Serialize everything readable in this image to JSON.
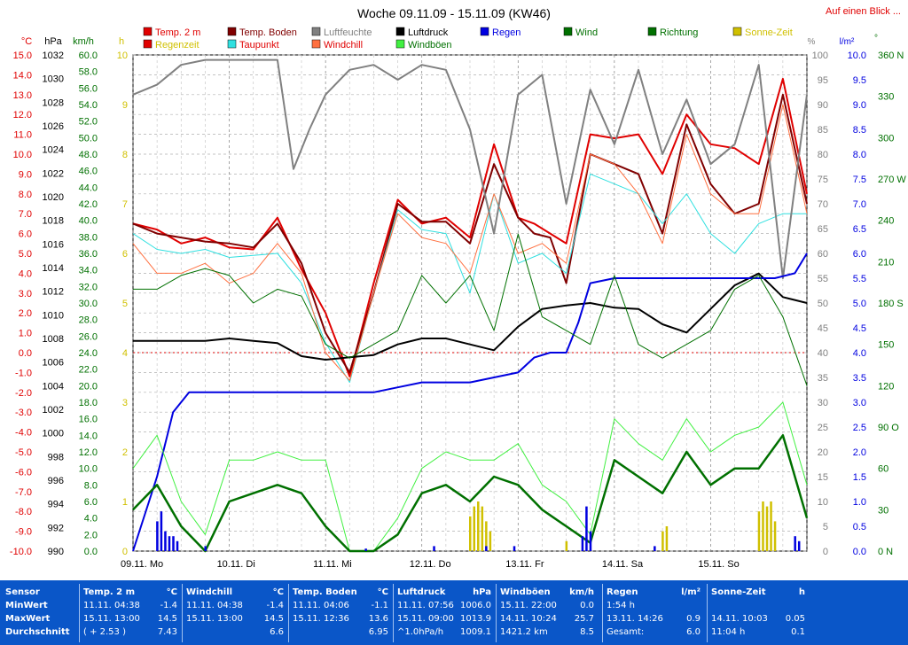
{
  "title": "Woche 09.11.09 - 15.11.09 (KW46)",
  "link": "Auf einen Blick ...",
  "colors": {
    "temp": "#e00000",
    "boden": "#800000",
    "feuchte": "#808080",
    "druck": "#000000",
    "regenzeit": "#e00000",
    "taupunkt": "#30e0e0",
    "windchill": "#ff7040",
    "windboeen": "#40f040",
    "regen": "#0000e0",
    "wind": "#007000",
    "richtung": "#007000",
    "sonne": "#d0c000",
    "footer": "#0a56c8"
  },
  "legend": [
    {
      "label": "Temp. 2 m",
      "color": "#e00000",
      "text": "#e00000"
    },
    {
      "label": "Temp. Boden",
      "color": "#800000",
      "text": "#800000"
    },
    {
      "label": "Luftfeuchte",
      "color": "#808080",
      "text": "#808080"
    },
    {
      "label": "Luftdruck",
      "color": "#000000",
      "text": "#000000"
    },
    {
      "label": "Regen",
      "color": "#0000e0",
      "text": "#0000e0"
    },
    {
      "label": "Wind",
      "color": "#007000",
      "text": "#007000"
    },
    {
      "label": "Richtung",
      "color": "#007000",
      "text": "#007000"
    },
    {
      "label": "Sonne-Zeit",
      "color": "#d0c000",
      "text": "#d0c000"
    },
    {
      "label": "Regenzeit",
      "color": "#e00000",
      "text": "#d0c000"
    },
    {
      "label": "Taupunkt",
      "color": "#30e0e0",
      "text": "#e00000"
    },
    {
      "label": "Windchill",
      "color": "#ff7040",
      "text": "#e00000"
    },
    {
      "label": "Windböen",
      "color": "#40f040",
      "text": "#007000"
    }
  ],
  "axes": {
    "temp": {
      "unit": "°C",
      "ticks": [
        "15.0",
        "14.0",
        "13.0",
        "12.0",
        "11.0",
        "10.0",
        "9.0",
        "8.0",
        "7.0",
        "6.0",
        "5.0",
        "4.0",
        "3.0",
        "2.0",
        "1.0",
        "0.0",
        "-1.0",
        "-2.0",
        "-3.0",
        "-4.0",
        "-5.0",
        "-6.0",
        "-7.0",
        "-8.0",
        "-9.0",
        "-10.0"
      ]
    },
    "press": {
      "unit": "hPa",
      "ticks": [
        "1032",
        "1030",
        "1028",
        "1026",
        "1024",
        "1022",
        "1020",
        "1018",
        "1016",
        "1014",
        "1012",
        "1010",
        "1008",
        "1006",
        "1004",
        "1002",
        "1000",
        "998",
        "996",
        "994",
        "992",
        "990"
      ]
    },
    "wind": {
      "unit": "km/h",
      "ticks": [
        "60.0",
        "58.0",
        "56.0",
        "54.0",
        "52.0",
        "50.0",
        "48.0",
        "46.0",
        "44.0",
        "42.0",
        "40.0",
        "38.0",
        "36.0",
        "34.0",
        "32.0",
        "30.0",
        "28.0",
        "26.0",
        "24.0",
        "22.0",
        "20.0",
        "18.0",
        "16.0",
        "14.0",
        "12.0",
        "10.0",
        "8.0",
        "6.0",
        "4.0",
        "2.0",
        "0.0"
      ]
    },
    "hours": {
      "unit": "h",
      "ticks": [
        "10",
        "9",
        "8",
        "7",
        "6",
        "5",
        "4",
        "3",
        "2",
        "1",
        "0"
      ]
    },
    "hum": {
      "unit": "%",
      "ticks": [
        "100",
        "95",
        "90",
        "85",
        "80",
        "75",
        "70",
        "65",
        "60",
        "55",
        "50",
        "45",
        "40",
        "35",
        "30",
        "25",
        "20",
        "15",
        "10",
        "5",
        "0"
      ]
    },
    "rain": {
      "unit": "l/m²",
      "ticks": [
        "10.0",
        "9.5",
        "9.0",
        "8.5",
        "8.0",
        "7.5",
        "7.0",
        "6.5",
        "6.0",
        "5.5",
        "5.0",
        "4.5",
        "4.0",
        "3.5",
        "3.0",
        "2.5",
        "2.0",
        "1.5",
        "1.0",
        "0.5",
        "0.0"
      ]
    },
    "dir": {
      "unit": "°",
      "ticks": [
        "360 N",
        "330",
        "300",
        "270 W",
        "240",
        "210",
        "180 S",
        "150",
        "120",
        "90 O",
        "60",
        "30",
        "0 N"
      ]
    }
  },
  "days": [
    "09.11. Mo",
    "10.11. Di",
    "11.11. Mi",
    "12.11. Do",
    "13.11. Fr",
    "14.11. Sa",
    "15.11. So"
  ],
  "chart_data": {
    "type": "line",
    "x_unit": "hours since 09.11. 00:00",
    "ylim_temp": [
      -10,
      15
    ],
    "ylim_press": [
      990,
      1032
    ],
    "ylim_wind": [
      0,
      60
    ],
    "ylim_hum": [
      0,
      100
    ],
    "ylim_rain": [
      0,
      10
    ],
    "ylim_dir": [
      0,
      360
    ],
    "series": [
      {
        "name": "Temp. 2 m",
        "axis": "temp",
        "x": [
          0,
          6,
          12,
          18,
          24,
          30,
          36,
          42,
          48,
          54,
          60,
          66,
          72,
          78,
          84,
          90,
          96,
          100,
          104,
          108,
          114,
          120,
          126,
          132,
          138,
          144,
          150,
          156,
          162,
          168
        ],
        "values": [
          6.5,
          6.2,
          5.5,
          5.8,
          5.3,
          5.2,
          6.8,
          4.2,
          2.0,
          -1.2,
          3.5,
          7.7,
          6.5,
          6.8,
          5.8,
          10.5,
          6.8,
          6.5,
          6.0,
          5.5,
          11.0,
          10.8,
          11.0,
          9.0,
          12.0,
          10.5,
          10.3,
          9.5,
          13.8,
          8.0
        ]
      },
      {
        "name": "Temp. Boden",
        "axis": "temp",
        "x": [
          0,
          6,
          12,
          18,
          24,
          30,
          36,
          42,
          48,
          54,
          60,
          66,
          72,
          78,
          84,
          90,
          96,
          100,
          104,
          108,
          114,
          120,
          126,
          132,
          138,
          144,
          150,
          156,
          162,
          168
        ],
        "values": [
          6.5,
          6.0,
          5.8,
          5.6,
          5.5,
          5.3,
          6.5,
          4.5,
          1.0,
          -1.0,
          3.0,
          7.5,
          6.6,
          6.6,
          5.5,
          9.5,
          6.8,
          6.0,
          5.8,
          3.5,
          10.0,
          9.5,
          9.0,
          6.0,
          11.5,
          8.5,
          7.0,
          7.5,
          13.0,
          7.5
        ]
      },
      {
        "name": "Taupunkt",
        "axis": "temp",
        "x": [
          0,
          6,
          12,
          18,
          24,
          30,
          36,
          42,
          48,
          54,
          60,
          66,
          72,
          78,
          84,
          90,
          96,
          102,
          108,
          114,
          120,
          126,
          132,
          138,
          144,
          150,
          156,
          162,
          168
        ],
        "values": [
          6.0,
          5.2,
          5.0,
          5.2,
          4.8,
          4.9,
          5.0,
          3.5,
          0.5,
          -1.5,
          3.0,
          7.2,
          6.2,
          6.0,
          3.0,
          8.0,
          4.5,
          5.0,
          4.0,
          9.0,
          8.5,
          8.0,
          6.5,
          8.0,
          6.0,
          5.0,
          6.5,
          7.0,
          7.0
        ]
      },
      {
        "name": "Windchill",
        "axis": "temp",
        "x": [
          0,
          6,
          12,
          18,
          24,
          30,
          36,
          42,
          48,
          54,
          60,
          66,
          72,
          78,
          84,
          90,
          96,
          102,
          108,
          114,
          120,
          126,
          132,
          138,
          144,
          150,
          156,
          162,
          168
        ],
        "values": [
          5.5,
          4.0,
          4.0,
          4.5,
          3.5,
          4.0,
          5.5,
          4.0,
          0.0,
          -1.4,
          3.0,
          7.0,
          5.8,
          5.5,
          4.0,
          8.0,
          5.0,
          5.5,
          4.5,
          10.0,
          9.5,
          8.0,
          5.5,
          11.0,
          8.0,
          7.0,
          7.0,
          12.5,
          7.0
        ]
      },
      {
        "name": "Luftfeuchte",
        "axis": "hum",
        "x": [
          0,
          6,
          12,
          18,
          24,
          30,
          36,
          40,
          44,
          48,
          54,
          60,
          66,
          72,
          78,
          84,
          90,
          96,
          102,
          108,
          114,
          120,
          126,
          132,
          138,
          144,
          150,
          156,
          162,
          168
        ],
        "values": [
          92,
          94,
          98,
          99,
          99,
          99,
          99,
          77,
          85,
          92,
          97,
          98,
          95,
          98,
          97,
          85,
          64,
          92,
          96,
          70,
          93,
          82,
          97,
          80,
          91,
          78,
          82,
          98,
          55,
          92
        ]
      },
      {
        "name": "Luftdruck",
        "axis": "press",
        "x": [
          0,
          6,
          12,
          18,
          24,
          30,
          36,
          42,
          48,
          54,
          60,
          66,
          72,
          78,
          84,
          90,
          96,
          102,
          108,
          114,
          120,
          126,
          132,
          138,
          144,
          150,
          156,
          162,
          168
        ],
        "values": [
          1007.8,
          1007.8,
          1007.8,
          1007.8,
          1008.0,
          1007.8,
          1007.6,
          1006.5,
          1006.2,
          1006.4,
          1006.6,
          1007.5,
          1008.0,
          1008.0,
          1007.5,
          1007.0,
          1009.0,
          1010.5,
          1010.8,
          1011.0,
          1010.6,
          1010.5,
          1009.2,
          1008.5,
          1010.5,
          1012.5,
          1013.5,
          1011.5,
          1011.0
        ]
      },
      {
        "name": "Regen",
        "axis": "rain",
        "x": [
          0,
          6,
          10,
          14,
          20,
          30,
          40,
          50,
          60,
          66,
          72,
          84,
          96,
          100,
          104,
          108,
          111,
          114,
          120,
          130,
          140,
          150,
          160,
          165,
          168
        ],
        "values": [
          0,
          1.5,
          2.8,
          3.2,
          3.2,
          3.2,
          3.2,
          3.2,
          3.2,
          3.3,
          3.4,
          3.4,
          3.6,
          3.9,
          4.0,
          4.0,
          4.6,
          5.4,
          5.5,
          5.5,
          5.5,
          5.5,
          5.5,
          5.6,
          6.0
        ]
      },
      {
        "name": "Windböen",
        "axis": "wind",
        "x": [
          0,
          6,
          12,
          18,
          24,
          30,
          36,
          42,
          48,
          54,
          60,
          66,
          72,
          78,
          84,
          90,
          96,
          102,
          108,
          114,
          120,
          126,
          132,
          138,
          144,
          150,
          156,
          162,
          168
        ],
        "values": [
          10,
          14,
          6,
          2,
          11,
          11,
          12,
          11,
          11,
          0,
          0,
          4,
          10,
          12,
          11,
          11,
          13,
          8,
          6,
          2,
          16,
          13,
          11,
          16,
          12,
          14,
          15,
          18,
          8
        ]
      },
      {
        "name": "Wind",
        "axis": "wind",
        "x": [
          0,
          6,
          12,
          18,
          24,
          30,
          36,
          42,
          48,
          54,
          60,
          66,
          72,
          78,
          84,
          90,
          96,
          102,
          108,
          114,
          120,
          126,
          132,
          138,
          144,
          150,
          156,
          162,
          168
        ],
        "values": [
          5,
          8,
          3,
          0,
          6,
          7,
          8,
          7,
          3,
          0,
          0,
          2,
          7,
          8,
          6,
          9,
          8,
          5,
          3,
          1,
          11,
          9,
          7,
          12,
          8,
          10,
          10,
          14,
          4
        ]
      },
      {
        "name": "Richtung",
        "axis": "dir",
        "x": [
          0,
          6,
          12,
          18,
          24,
          30,
          36,
          42,
          48,
          54,
          60,
          66,
          72,
          78,
          84,
          90,
          96,
          102,
          108,
          114,
          120,
          126,
          132,
          138,
          144,
          150,
          156,
          162,
          168
        ],
        "values": [
          190,
          190,
          200,
          205,
          200,
          180,
          190,
          185,
          150,
          140,
          150,
          160,
          200,
          180,
          200,
          160,
          230,
          170,
          160,
          150,
          200,
          150,
          140,
          150,
          160,
          190,
          200,
          170,
          120
        ]
      },
      {
        "name": "Sonne-Zeit",
        "axis": "hours",
        "x": [
          84,
          85,
          86,
          87,
          88,
          89,
          108,
          132,
          133,
          156,
          157,
          158,
          159,
          160
        ],
        "values": [
          0.7,
          0.9,
          1.0,
          0.9,
          0.6,
          0.4,
          0.2,
          0.4,
          0.5,
          0.8,
          1.0,
          0.9,
          1.0,
          0.6
        ]
      },
      {
        "name": "Regenzeit",
        "axis": "hours",
        "x": [
          6,
          7,
          8,
          9,
          10,
          11,
          18,
          58,
          75,
          88,
          95,
          112,
          113,
          114,
          130,
          165,
          166
        ],
        "values": [
          0.6,
          0.8,
          0.4,
          0.3,
          0.3,
          0.2,
          0.1,
          0.05,
          0.1,
          0.1,
          0.1,
          0.3,
          0.9,
          0.4,
          0.1,
          0.3,
          0.2
        ]
      }
    ]
  },
  "stats": {
    "sensor": "Sensor",
    "min": "MinWert",
    "max": "MaxWert",
    "avg": "Durchschnitt",
    "temp": {
      "hdr": "Temp. 2 m",
      "unit": "°C",
      "min_t": "11.11.  04:38",
      "min_v": "-1.4",
      "max_t": "15.11.  13:00",
      "max_v": "14.5",
      "avg_t": "( + 2.53 )",
      "avg_v": "7.43"
    },
    "chill": {
      "hdr": "Windchill",
      "unit": "°C",
      "min_t": "11.11.  04:38",
      "min_v": "-1.4",
      "max_t": "15.11.  13:00",
      "max_v": "14.5",
      "avg_t": "",
      "avg_v": "6.6"
    },
    "boden": {
      "hdr": "Temp. Boden",
      "unit": "°C",
      "min_t": "11.11.  04:06",
      "min_v": "-1.1",
      "max_t": "15.11.  12:36",
      "max_v": "13.6",
      "avg_t": "",
      "avg_v": "6.95"
    },
    "druck": {
      "hdr": "Luftdruck",
      "unit": "hPa",
      "min_t": "11.11.  07:56",
      "min_v": "1006.0",
      "max_t": "15.11.  09:00",
      "max_v": "1013.9",
      "avg_t": "^1.0hPa/h",
      "avg_v": "1009.1"
    },
    "boeen": {
      "hdr": "Windböen",
      "unit": "km/h",
      "min_t": "15.11.  22:00",
      "min_v": "0.0",
      "max_t": "14.11.  10:24",
      "max_v": "25.7",
      "avg_t": "1421.2 km",
      "avg_v": "8.5"
    },
    "regen": {
      "hdr": "Regen",
      "unit": "l/m²",
      "min_t": "1:54 h",
      "min_v": "",
      "max_t": "13.11.  14:26",
      "max_v": "0.9",
      "avg_t": "Gesamt:",
      "avg_v": "6.0"
    },
    "sonne": {
      "hdr": "Sonne-Zeit",
      "unit": "h",
      "min_t": "",
      "min_v": "",
      "max_t": "14.11.  10:03",
      "max_v": "0.05",
      "avg_t": "11:04 h",
      "avg_v": "0.1"
    }
  }
}
